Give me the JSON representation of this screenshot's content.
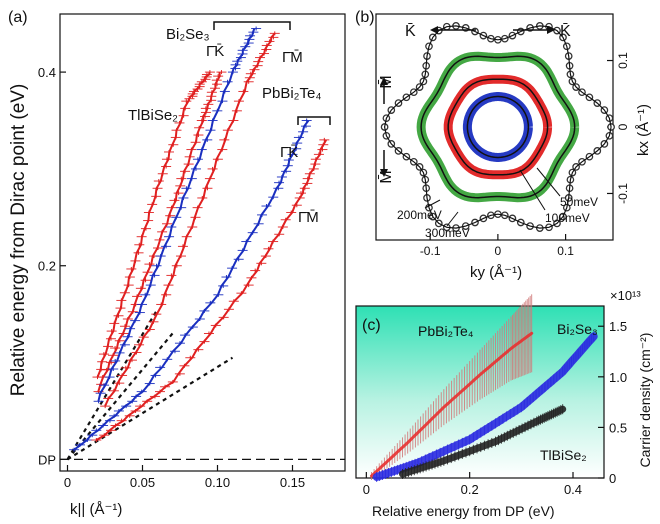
{
  "chart_data": [
    {
      "panel": "(a)",
      "type": "line",
      "xlabel": "k|| (Å⁻¹)",
      "ylabel": "Relative energy from Dirac point (eV)",
      "xlim": [
        -0.005,
        0.185
      ],
      "ylim": [
        -0.012,
        0.46
      ],
      "x_ticks": [
        "0",
        "0.05",
        "0.10",
        "0.15"
      ],
      "x_tick_values": [
        0,
        0.05,
        0.1,
        0.15
      ],
      "y_ticks": [
        "DP",
        "0.2",
        "0.4"
      ],
      "y_tick_values": [
        0,
        0.2,
        0.4
      ],
      "labels": {
        "tlbise2": "TlBiSe₂",
        "bi2se3": "Bi₂Se₃",
        "pbbi2te4": "PbBi₂Te₄",
        "gk": "Γ̄K̄",
        "gm": "Γ̄M̄"
      },
      "series": [
        {
          "group": "TlBiSe₂",
          "direction": "Γ̄K̄",
          "color": "#e02020",
          "x": [
            0.02,
            0.04,
            0.06,
            0.08,
            0.095
          ],
          "y": [
            0.085,
            0.18,
            0.28,
            0.37,
            0.4
          ]
        },
        {
          "group": "TlBiSe₂",
          "direction": "Γ̄M̄",
          "color": "#e02020",
          "x": [
            0.02,
            0.045,
            0.07,
            0.09,
            0.102
          ],
          "y": [
            0.07,
            0.16,
            0.26,
            0.35,
            0.4
          ]
        },
        {
          "group": "Bi₂Se₃",
          "direction": "Γ̄K̄",
          "color": "#1a2fc0",
          "x": [
            0.02,
            0.05,
            0.08,
            0.11,
            0.125
          ],
          "y": [
            0.06,
            0.16,
            0.28,
            0.4,
            0.445
          ]
        },
        {
          "group": "Bi₂Se₃",
          "direction": "Γ̄M̄",
          "color": "#e02020",
          "x": [
            0.025,
            0.06,
            0.09,
            0.12,
            0.138
          ],
          "y": [
            0.055,
            0.15,
            0.27,
            0.39,
            0.44
          ]
        },
        {
          "group": "PbBi₂Te₄",
          "direction": "Γ̄K̄",
          "color": "#1a2fc0",
          "x": [
            0.005,
            0.05,
            0.1,
            0.14,
            0.16
          ],
          "y": [
            0.01,
            0.07,
            0.17,
            0.28,
            0.35
          ]
        },
        {
          "group": "PbBi₂Te₄",
          "direction": "Γ̄M̄",
          "color": "#e02020",
          "x": [
            0.02,
            0.07,
            0.12,
            0.155,
            0.172
          ],
          "y": [
            0.02,
            0.08,
            0.18,
            0.27,
            0.33
          ]
        }
      ],
      "dirac_fits": [
        {
          "x": [
            0.0,
            0.06
          ],
          "y": [
            0.0,
            0.155
          ]
        },
        {
          "x": [
            0.0,
            0.07
          ],
          "y": [
            0.0,
            0.13
          ]
        },
        {
          "x": [
            0.0,
            0.11
          ],
          "y": [
            0.0,
            0.105
          ]
        }
      ]
    },
    {
      "panel": "(b)",
      "type": "scatter",
      "xlabel": "ky (Å⁻¹)",
      "ylabel": "kx (Å⁻¹)",
      "xlim": [
        -0.18,
        0.17
      ],
      "ylim": [
        -0.17,
        0.17
      ],
      "x_ticks": [
        "-0.1",
        "0",
        "0.1"
      ],
      "x_tick_values": [
        -0.1,
        0,
        0.1
      ],
      "y_ticks": [
        "0.1",
        "0",
        "-0.1"
      ],
      "y_tick_values": [
        0.1,
        0,
        -0.1
      ],
      "direction_labels": {
        "k": "K̄",
        "m": "M̄"
      },
      "contours": [
        {
          "energy": "50meV",
          "color": "#1a2fc0",
          "radius": 0.045,
          "hexagonal_warping": 0.0
        },
        {
          "energy": "100meV",
          "color": "#e02020",
          "radius": 0.072,
          "hexagonal_warping": 0.02
        },
        {
          "energy": "200meV",
          "color": "#3aa33a",
          "radius": 0.108,
          "hexagonal_warping": 0.05
        },
        {
          "energy": "300meV",
          "color": "#555555",
          "radius": 0.148,
          "hexagonal_warping": 0.13
        }
      ]
    },
    {
      "panel": "(c)",
      "type": "line",
      "xlabel": "Relative energy from DP (eV)",
      "ylabel": "Carrier density (cm⁻²)",
      "multiplier": "×10¹³",
      "xlim": [
        -0.02,
        0.46
      ],
      "ylim": [
        0,
        1.7
      ],
      "x_ticks": [
        "0",
        "0.2",
        "0.4"
      ],
      "x_tick_values": [
        0,
        0.2,
        0.4
      ],
      "y_ticks": [
        "0",
        "0.5",
        "1.0",
        "1.5"
      ],
      "y_tick_values": [
        0,
        0.5,
        1.0,
        1.5
      ],
      "series": [
        {
          "name": "PbBi₂Te₄",
          "color": "#e83030",
          "x": [
            0.01,
            0.08,
            0.15,
            0.22,
            0.28,
            0.32
          ],
          "y": [
            0.02,
            0.35,
            0.7,
            1.02,
            1.28,
            1.43
          ]
        },
        {
          "name": "Bi₂Se₃",
          "color": "#2a2ae0",
          "x": [
            0.02,
            0.1,
            0.2,
            0.3,
            0.38,
            0.44
          ],
          "y": [
            0.01,
            0.15,
            0.38,
            0.7,
            1.05,
            1.4
          ]
        },
        {
          "name": "TlBiSe₂",
          "color": "#222222",
          "x": [
            0.07,
            0.15,
            0.25,
            0.33,
            0.38
          ],
          "y": [
            0.04,
            0.17,
            0.36,
            0.56,
            0.68
          ]
        }
      ]
    }
  ]
}
